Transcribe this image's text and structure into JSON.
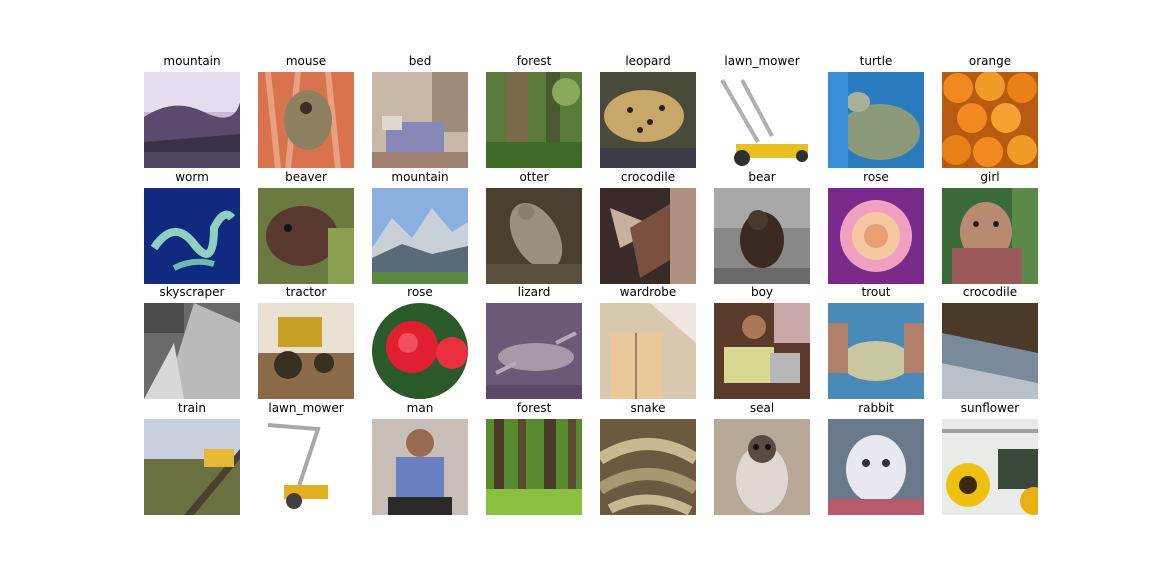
{
  "figure": {
    "background": "#ffffff",
    "cells": [
      {
        "label": "mountain"
      },
      {
        "label": "mouse"
      },
      {
        "label": "bed"
      },
      {
        "label": "forest"
      },
      {
        "label": "leopard"
      },
      {
        "label": "lawn_mower"
      },
      {
        "label": "turtle"
      },
      {
        "label": "orange"
      },
      {
        "label": "worm"
      },
      {
        "label": "beaver"
      },
      {
        "label": "mountain"
      },
      {
        "label": "otter"
      },
      {
        "label": "crocodile"
      },
      {
        "label": "bear"
      },
      {
        "label": "rose"
      },
      {
        "label": "girl"
      },
      {
        "label": "skyscraper"
      },
      {
        "label": "tractor"
      },
      {
        "label": "rose"
      },
      {
        "label": "lizard"
      },
      {
        "label": "wardrobe"
      },
      {
        "label": "boy"
      },
      {
        "label": "trout"
      },
      {
        "label": "crocodile"
      },
      {
        "label": "train"
      },
      {
        "label": "lawn_mower"
      },
      {
        "label": "man"
      },
      {
        "label": "forest"
      },
      {
        "label": "snake"
      },
      {
        "label": "seal"
      },
      {
        "label": "rabbit"
      },
      {
        "label": "sunflower"
      }
    ]
  }
}
